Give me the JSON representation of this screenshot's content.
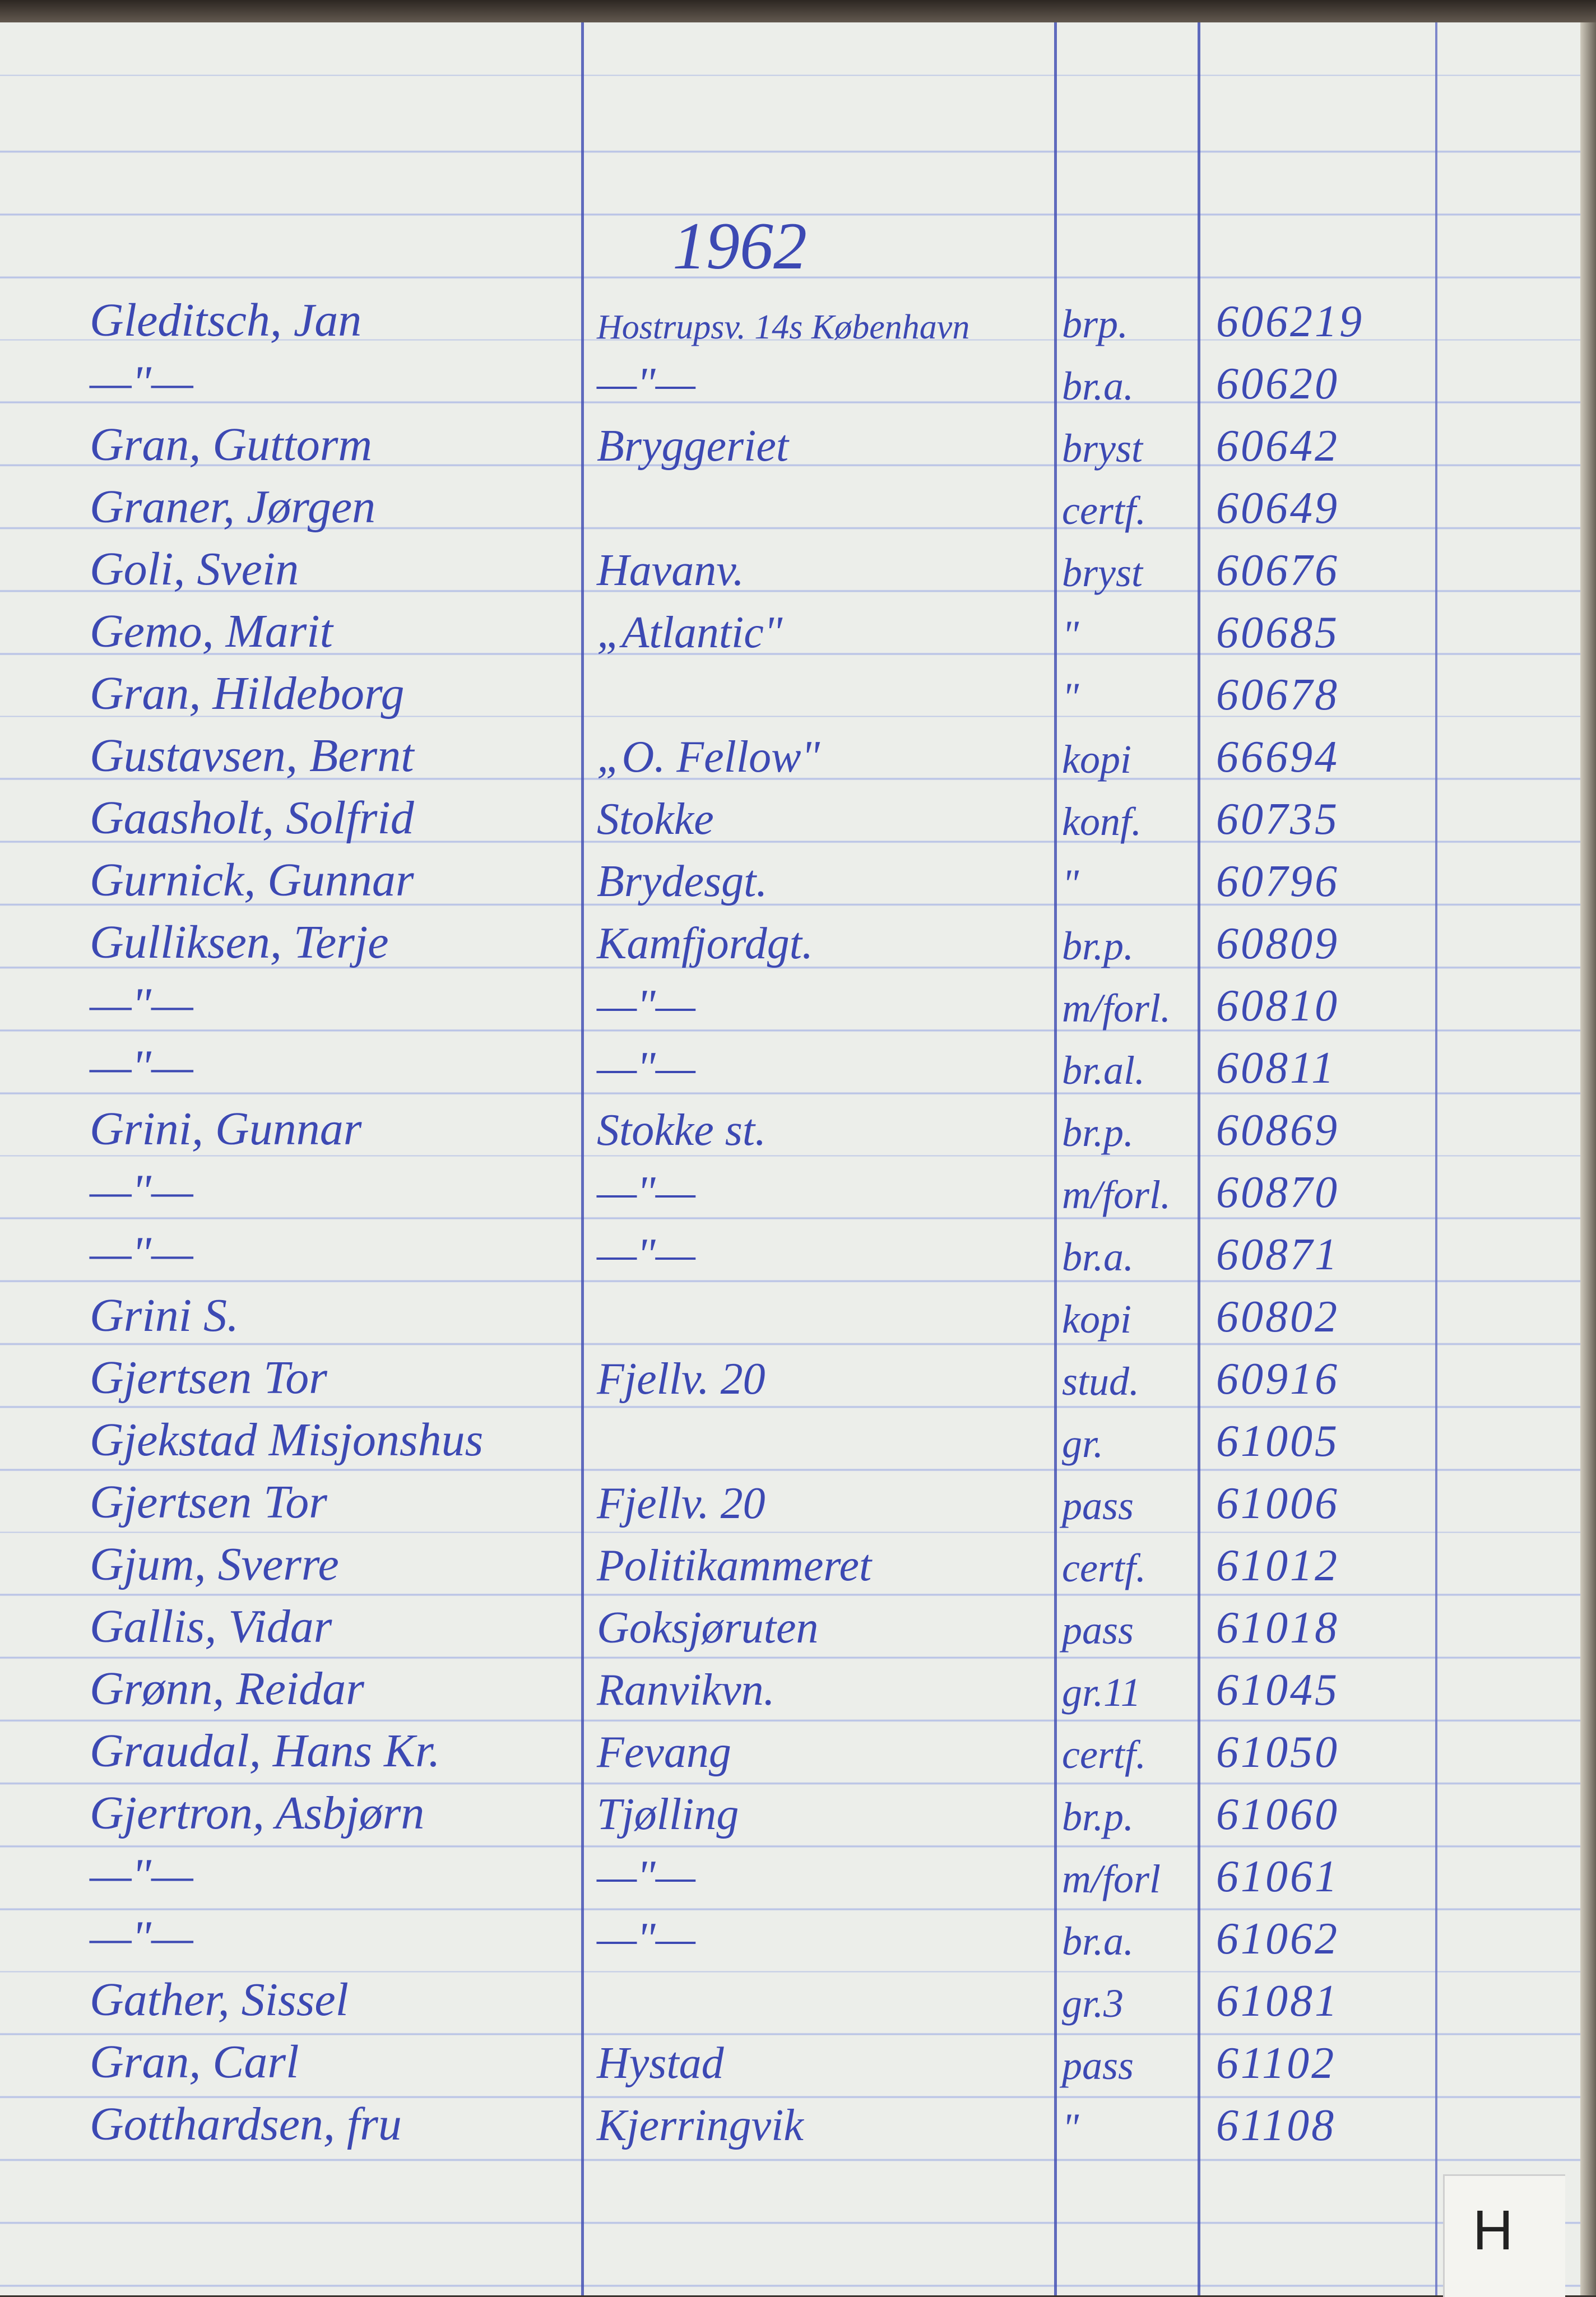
{
  "header": {
    "year": "1962"
  },
  "rows": [
    {
      "name": "Gleditsch, Jan",
      "address": "Hostrupsv. 14s København",
      "type": "brp.",
      "number": "606219"
    },
    {
      "name": "—\"—",
      "address": "—\"—",
      "type": "br.a.",
      "number": "60620"
    },
    {
      "name": "Gran, Guttorm",
      "address": "Bryggeriet",
      "type": "bryst",
      "number": "60642"
    },
    {
      "name": "Graner, Jørgen",
      "address": "",
      "type": "certf.",
      "number": "60649"
    },
    {
      "name": "Goli, Svein",
      "address": "Havanv.",
      "type": "bryst",
      "number": "60676"
    },
    {
      "name": "Gemo, Marit",
      "address": "„Atlantic\"",
      "type": "\"",
      "number": "60685"
    },
    {
      "name": "Gran, Hildeborg",
      "address": "",
      "type": "\"",
      "number": "60678"
    },
    {
      "name": "Gustavsen, Bernt",
      "address": "„O. Fellow\"",
      "type": "kopi",
      "number": "66694"
    },
    {
      "name": "Gaasholt, Solfrid",
      "address": "Stokke",
      "type": "konf.",
      "number": "60735"
    },
    {
      "name": "Gurnick, Gunnar",
      "address": "Brydesgt.",
      "type": "\"",
      "number": "60796"
    },
    {
      "name": "Gulliksen, Terje",
      "address": "Kamfjordgt.",
      "type": "br.p.",
      "number": "60809"
    },
    {
      "name": "—\"—",
      "address": "—\"—",
      "type": "m/forl.",
      "number": "60810"
    },
    {
      "name": "—\"—",
      "address": "—\"—",
      "type": "br.al.",
      "number": "60811"
    },
    {
      "name": "Grini, Gunnar",
      "address": "Stokke st.",
      "type": "br.p.",
      "number": "60869"
    },
    {
      "name": "—\"—",
      "address": "—\"—",
      "type": "m/forl.",
      "number": "60870"
    },
    {
      "name": "—\"—",
      "address": "—\"—",
      "type": "br.a.",
      "number": "60871"
    },
    {
      "name": "Grini S.",
      "address": "",
      "type": "kopi",
      "number": "60802"
    },
    {
      "name": "Gjertsen Tor",
      "address": "Fjellv. 20",
      "type": "stud.",
      "number": "60916"
    },
    {
      "name": "Gjekstad Misjonshus",
      "address": "",
      "type": "gr.",
      "number": "61005"
    },
    {
      "name": "Gjertsen Tor",
      "address": "Fjellv. 20",
      "type": "pass",
      "number": "61006"
    },
    {
      "name": "Gjum, Sverre",
      "address": "Politikammeret",
      "type": "certf.",
      "number": "61012"
    },
    {
      "name": "Gallis, Vidar",
      "address": "Goksjøruten",
      "type": "pass",
      "number": "61018"
    },
    {
      "name": "Grønn, Reidar",
      "address": "Ranvikvn.",
      "type": "gr.11",
      "number": "61045"
    },
    {
      "name": "Graudal, Hans Kr.",
      "address": "Fevang",
      "type": "certf.",
      "number": "61050"
    },
    {
      "name": "Gjertron, Asbjørn",
      "address": "Tjølling",
      "type": "br.p.",
      "number": "61060"
    },
    {
      "name": "—\"—",
      "address": "—\"—",
      "type": "m/forl",
      "number": "61061"
    },
    {
      "name": "—\"—",
      "address": "—\"—",
      "type": "br.a.",
      "number": "61062"
    },
    {
      "name": "Gather, Sissel",
      "address": "",
      "type": "gr.3",
      "number": "61081"
    },
    {
      "name": "Gran, Carl",
      "address": "Hystad",
      "type": "pass",
      "number": "61102"
    },
    {
      "name": "Gotthardsen, fru",
      "address": "Kjerringvik",
      "type": "\"",
      "number": "61108"
    }
  ],
  "tab": {
    "letter": "H"
  },
  "colors": {
    "ink": "#3c49b3",
    "paper": "#eceeea",
    "rule": "#b9c3e6"
  }
}
